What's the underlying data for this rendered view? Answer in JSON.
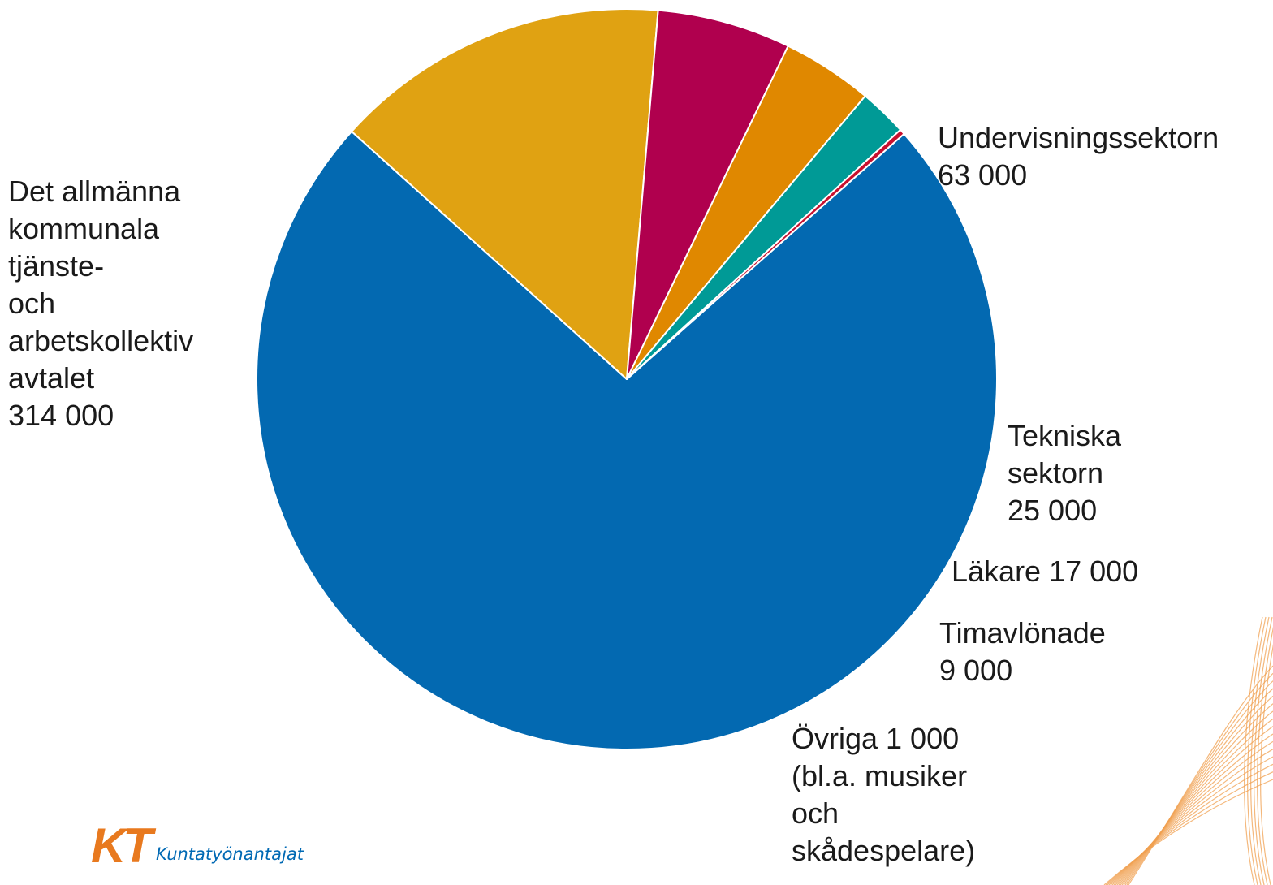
{
  "chart_data": {
    "type": "pie",
    "slices": [
      {
        "label_lines": [
          "Det allmänna",
          "kommunala",
          "tjänste-",
          "och",
          "arbetskollektiv",
          "avtalet",
          "314 000"
        ],
        "value": 314000,
        "color": "#0369b1"
      },
      {
        "label_lines": [
          "Undervisningssektorn",
          "63 000"
        ],
        "value": 63000,
        "color": "#e0a212"
      },
      {
        "label_lines": [
          "Tekniska",
          "sektorn",
          "25 000"
        ],
        "value": 25000,
        "color": "#b0004e"
      },
      {
        "label_lines": [
          "Läkare 17 000"
        ],
        "value": 17000,
        "color": "#e08800"
      },
      {
        "label_lines": [
          "Timavlönade",
          "9 000"
        ],
        "value": 9000,
        "color": "#009a96"
      },
      {
        "label_lines": [
          "Övriga 1 000",
          "(bl.a. musiker",
          "och",
          "skådespelare)"
        ],
        "value": 1000,
        "color": "#c8102e"
      }
    ]
  },
  "logo": {
    "mark": "KT",
    "text": "Kuntatyönantajat",
    "mark_color": "#e8791e",
    "text_color": "#0069b4"
  }
}
